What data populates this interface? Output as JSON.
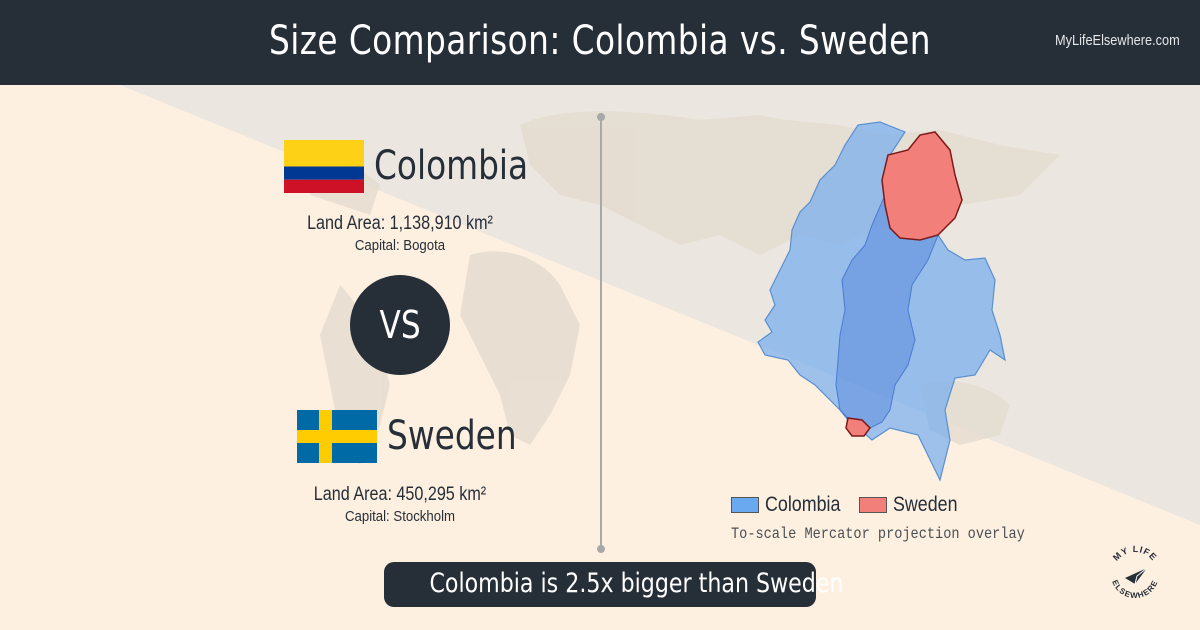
{
  "header": {
    "title": "Size Comparison: Colombia vs. Sweden",
    "site": "MyLifeElsewhere.com"
  },
  "countries": [
    {
      "name": "Colombia",
      "land_area": "Land Area: 1,138,910 km²",
      "capital": "Capital: Bogota",
      "flag": "colombia-flag",
      "map_color": "#6aa8f0"
    },
    {
      "name": "Sweden",
      "land_area": "Land Area: 450,295 km²",
      "capital": "Capital: Stockholm",
      "flag": "sweden-flag",
      "map_color": "#f37f7b"
    }
  ],
  "vs_label": "VS",
  "legend": {
    "items": [
      {
        "label": "Colombia",
        "color": "#6aa8f0"
      },
      {
        "label": "Sweden",
        "color": "#f37f7b"
      }
    ],
    "note": "To-scale Mercator projection overlay"
  },
  "summary": "Colombia is 2.5x bigger than Sweden",
  "logo": {
    "top": "MY LIFE",
    "bottom": "ELSEWHERE",
    "icon": "paper-plane-icon"
  },
  "colors": {
    "header_bg": "#262e38",
    "background": "#fdf0e0",
    "colombia": "#6aa8f0",
    "sweden": "#f37f7b"
  }
}
